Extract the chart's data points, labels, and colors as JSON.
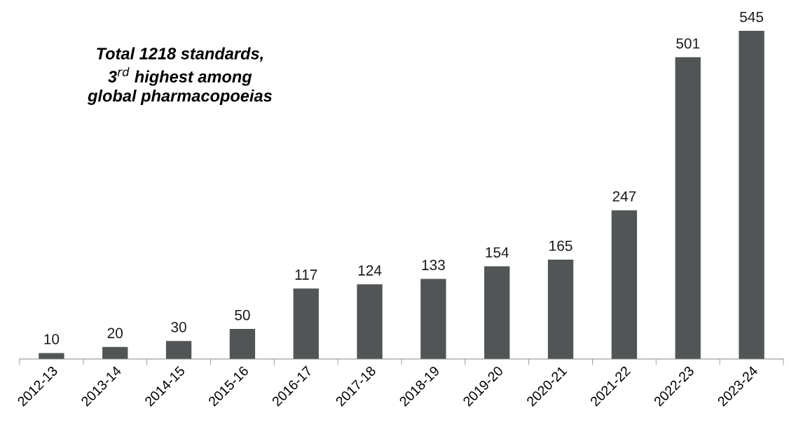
{
  "chart_data": {
    "type": "bar",
    "categories": [
      "2012-13",
      "2013-14",
      "2014-15",
      "2015-16",
      "2016-17",
      "2017-18",
      "2018-19",
      "2019-20",
      "2020-21",
      "2021-22",
      "2022-23",
      "2023-24"
    ],
    "values": [
      10,
      20,
      30,
      50,
      117,
      124,
      133,
      154,
      165,
      247,
      501,
      545
    ],
    "color": "#525556",
    "data_labels": true,
    "grid": false,
    "legend": false,
    "annotations": [
      "Total 1218 standards,\n3$^{rd}$ highest among\nglobal pharmacopoeias"
    ]
  }
}
